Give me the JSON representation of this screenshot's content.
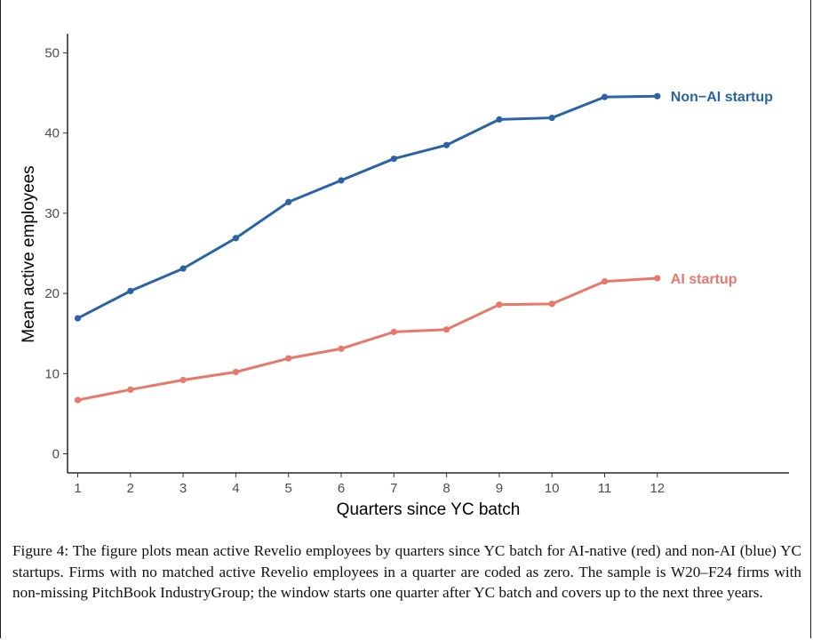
{
  "chart_data": {
    "type": "line",
    "xlabel": "Quarters since YC batch",
    "ylabel": "Mean active employees",
    "x": [
      1,
      2,
      3,
      4,
      5,
      6,
      7,
      8,
      9,
      10,
      11,
      12
    ],
    "xlim": [
      1,
      12
    ],
    "ylim": [
      0,
      50
    ],
    "yticks": [
      0,
      10,
      20,
      30,
      40,
      50
    ],
    "grid": false,
    "series": [
      {
        "name": "Non−AI startup",
        "color": "#2a64a6",
        "values": [
          16.9,
          20.3,
          23.1,
          26.9,
          31.4,
          34.1,
          36.8,
          38.5,
          41.7,
          41.9,
          44.5,
          44.6
        ]
      },
      {
        "name": "AI startup",
        "color": "#e8786a",
        "values": [
          6.7,
          8.0,
          9.2,
          10.2,
          11.9,
          13.1,
          15.2,
          15.5,
          18.6,
          18.7,
          21.5,
          21.9
        ]
      }
    ]
  },
  "caption": "Figure 4: The figure plots mean active Revelio employees by quarters since YC batch for AI-native (red) and non-AI (blue) YC startups. Firms with no matched active Revelio employees in a quarter are coded as zero. The sample is W20–F24 firms with non-missing PitchBook IndustryGroup; the window starts one quarter after YC batch and covers up to the next three years."
}
